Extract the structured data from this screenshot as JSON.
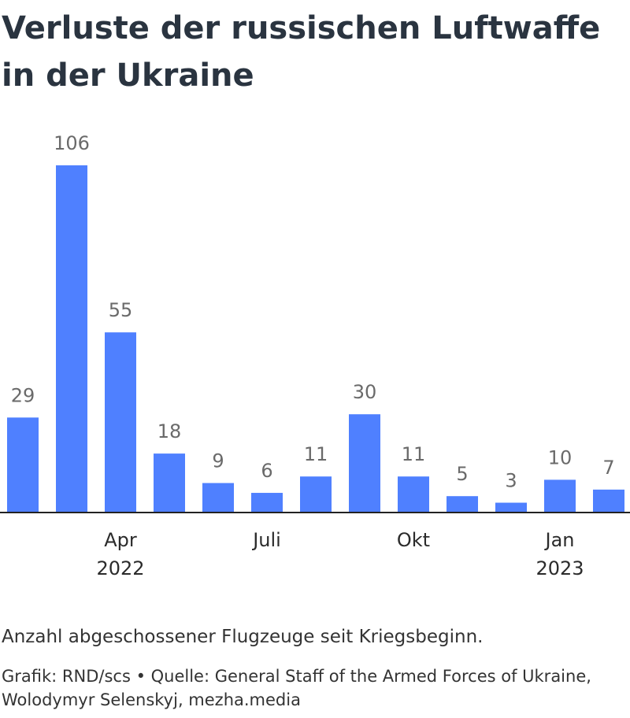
{
  "title": "Verluste der russischen Luftwaffe in der Ukraine",
  "subtitle": "Anzahl abgeschossener Flugzeuge seit Kriegsbeginn.",
  "source": "Grafik: RND/scs • Quelle: General Staff of the Armed Forces of Ukraine, Wolodymyr Selenskyj, mezha.media",
  "colors": {
    "bar": "#4f80ff",
    "axis": "#222222"
  },
  "chart_data": {
    "type": "bar",
    "categories": [
      "2022-02",
      "2022-03",
      "2022-04",
      "2022-05",
      "2022-06",
      "2022-07",
      "2022-08",
      "2022-09",
      "2022-10",
      "2022-11",
      "2022-12",
      "2023-01",
      "2023-02"
    ],
    "values": [
      29,
      106,
      55,
      18,
      9,
      6,
      11,
      30,
      11,
      5,
      3,
      10,
      7
    ],
    "title": "Verluste der russischen Luftwaffe in der Ukraine",
    "xlabel": "",
    "ylabel": "",
    "ylim": [
      0,
      106
    ],
    "grid": false,
    "x_ticks": [
      {
        "category": "2022-04",
        "label": "Apr",
        "sublabel": "2022"
      },
      {
        "category": "2022-07",
        "label": "Juli",
        "sublabel": ""
      },
      {
        "category": "2022-10",
        "label": "Okt",
        "sublabel": ""
      },
      {
        "category": "2023-01",
        "label": "Jan",
        "sublabel": "2023"
      }
    ]
  }
}
